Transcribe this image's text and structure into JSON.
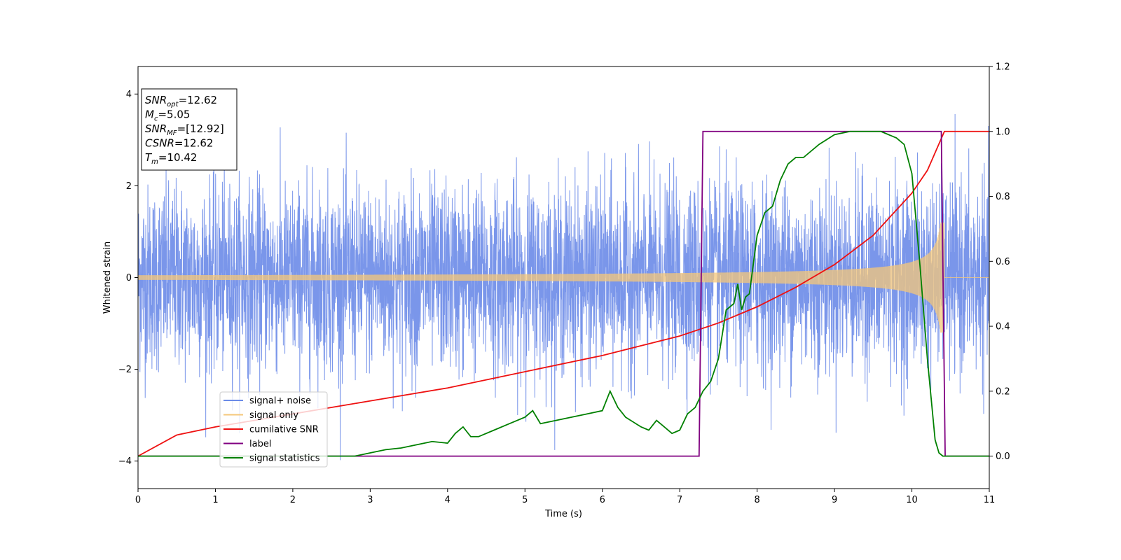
{
  "chart_data": {
    "type": "line",
    "xlabel": "Time (s)",
    "ylabel_left": "Whitened strain",
    "ylabel_right": "",
    "xlim": [
      0,
      11
    ],
    "ylim_left": [
      -4.6,
      4.6
    ],
    "ylim_right": [
      -0.1,
      1.2
    ],
    "xticks": [
      "0",
      "1",
      "2",
      "3",
      "4",
      "5",
      "6",
      "7",
      "8",
      "9",
      "10",
      "11"
    ],
    "yticks_left": [
      "−4",
      "−2",
      "0",
      "2",
      "4"
    ],
    "yticks_right": [
      "0.0",
      "0.2",
      "0.4",
      "0.6",
      "0.8",
      "1.0",
      "1.2"
    ],
    "legend_location": "lower-left",
    "series": [
      {
        "name": "signal+ noise",
        "color": "#6b8be8",
        "axis": "left",
        "description_values": {
          "std": 1.0,
          "max": 4.18,
          "min": -3.98,
          "t_end": 11
        }
      },
      {
        "name": "signal only",
        "color": "#f5c77a",
        "axis": "left",
        "chirp": {
          "amp_start": 0.05,
          "amp_peak": 1.2,
          "t_merger": 10.42
        }
      },
      {
        "name": "cumilative SNR",
        "color": "#ee1111",
        "axis": "right",
        "x": [
          0,
          0.5,
          1,
          2,
          3,
          4,
          5,
          6,
          7,
          7.5,
          8,
          8.5,
          9,
          9.5,
          10,
          10.2,
          10.42,
          11
        ],
        "y": [
          0.0,
          0.065,
          0.09,
          0.13,
          0.17,
          0.21,
          0.26,
          0.31,
          0.37,
          0.41,
          0.46,
          0.52,
          0.59,
          0.68,
          0.81,
          0.88,
          1.0,
          1.0
        ]
      },
      {
        "name": "label",
        "color": "#800080",
        "axis": "right",
        "x": [
          0,
          7.25,
          7.3,
          10.38,
          10.43,
          11
        ],
        "y": [
          0,
          0,
          1,
          1,
          0,
          0
        ]
      },
      {
        "name": "signal statistics",
        "color": "#008000",
        "axis": "right",
        "x": [
          0,
          1,
          2,
          2.8,
          3.0,
          3.2,
          3.4,
          3.6,
          3.8,
          4.0,
          4.1,
          4.2,
          4.3,
          4.4,
          4.6,
          4.8,
          5.0,
          5.1,
          5.2,
          5.4,
          5.6,
          5.8,
          6.0,
          6.1,
          6.2,
          6.3,
          6.5,
          6.6,
          6.7,
          6.8,
          6.9,
          7.0,
          7.1,
          7.2,
          7.3,
          7.4,
          7.5,
          7.6,
          7.7,
          7.75,
          7.8,
          7.85,
          7.9,
          8.0,
          8.1,
          8.2,
          8.3,
          8.4,
          8.5,
          8.6,
          8.8,
          9.0,
          9.2,
          9.4,
          9.6,
          9.8,
          9.9,
          10.0,
          10.1,
          10.2,
          10.3,
          10.35,
          10.4,
          10.5,
          11
        ],
        "y": [
          0.0,
          0.0,
          0.0,
          0.0,
          0.01,
          0.02,
          0.025,
          0.035,
          0.045,
          0.04,
          0.07,
          0.09,
          0.06,
          0.06,
          0.08,
          0.1,
          0.12,
          0.14,
          0.1,
          0.11,
          0.12,
          0.13,
          0.14,
          0.2,
          0.15,
          0.12,
          0.09,
          0.08,
          0.11,
          0.09,
          0.07,
          0.08,
          0.13,
          0.15,
          0.2,
          0.23,
          0.3,
          0.45,
          0.47,
          0.53,
          0.45,
          0.49,
          0.5,
          0.68,
          0.75,
          0.77,
          0.85,
          0.9,
          0.92,
          0.92,
          0.96,
          0.99,
          1.0,
          1.0,
          1.0,
          0.98,
          0.96,
          0.87,
          0.6,
          0.3,
          0.05,
          0.01,
          0.0,
          0.0,
          0.0
        ]
      }
    ]
  },
  "info_box": {
    "lines": [
      {
        "sym": "SNR",
        "sub": "opt",
        "val": "=12.62"
      },
      {
        "sym": "M",
        "sub": "c",
        "val": "=5.05"
      },
      {
        "sym": "SNR",
        "sub": "MF",
        "val": "=[12.92]"
      },
      {
        "sym": "CSNR",
        "sub": "",
        "val": "=12.62"
      },
      {
        "sym": "T",
        "sub": "m",
        "val": "=10.42"
      }
    ]
  }
}
